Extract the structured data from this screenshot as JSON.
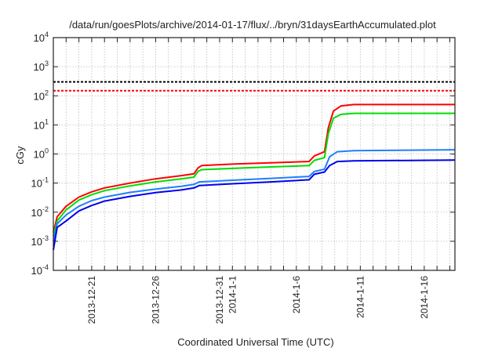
{
  "chart_data": {
    "type": "line",
    "title": "/data/run/goesPlots/archive/2014-01-17/flux/../bryn/31daysEarthAccumulated.plot",
    "xlabel": "Coordinated Universal Time (UTC)",
    "ylabel": "cGy",
    "x_units": "days since 2013-12-18 00:00 UTC",
    "xlim": [
      0,
      31.4
    ],
    "ylim": [
      0.0001,
      10000
    ],
    "yscale": "log",
    "grid": true,
    "y_ticks": [
      {
        "value": 0.0001,
        "base": "10",
        "exp": "-4"
      },
      {
        "value": 0.001,
        "base": "10",
        "exp": "-3"
      },
      {
        "value": 0.01,
        "base": "10",
        "exp": "-2"
      },
      {
        "value": 0.1,
        "base": "10",
        "exp": "-1"
      },
      {
        "value": 1,
        "base": "10",
        "exp": "0"
      },
      {
        "value": 10,
        "base": "10",
        "exp": "1"
      },
      {
        "value": 100,
        "base": "10",
        "exp": "2"
      },
      {
        "value": 1000,
        "base": "10",
        "exp": "3"
      },
      {
        "value": 10000,
        "base": "10",
        "exp": "4"
      }
    ],
    "x_tick_labels": [
      {
        "x": 3,
        "label": "2013-12-21"
      },
      {
        "x": 8,
        "label": "2013-12-26"
      },
      {
        "x": 13,
        "label": "2013-12-31"
      },
      {
        "x": 14,
        "label": "2014-1-1"
      },
      {
        "x": 19,
        "label": "2014-1-6"
      },
      {
        "x": 24,
        "label": "2014-1-11"
      },
      {
        "x": 29,
        "label": "2014-1-16"
      }
    ],
    "thresholds": [
      {
        "name": "threshold-black",
        "value": 300,
        "color": "#000000"
      },
      {
        "name": "threshold-red",
        "value": 150,
        "color": "#ff0000"
      }
    ],
    "series": [
      {
        "name": "red",
        "color": "#ff0000",
        "x": [
          0,
          0.3,
          1,
          2,
          3,
          4,
          6,
          8,
          10,
          11.0,
          11.3,
          11.6,
          14,
          17,
          20.0,
          20.4,
          21.2,
          21.5,
          21.9,
          22.5,
          23.5,
          31.4
        ],
        "y": [
          0.002,
          0.007,
          0.016,
          0.033,
          0.05,
          0.068,
          0.1,
          0.14,
          0.18,
          0.21,
          0.33,
          0.4,
          0.45,
          0.5,
          0.55,
          0.85,
          1.2,
          8,
          30,
          45,
          50,
          50
        ]
      },
      {
        "name": "green",
        "color": "#00dd00",
        "x": [
          0,
          0.3,
          1,
          2,
          3,
          4,
          6,
          8,
          10,
          11.0,
          11.3,
          11.6,
          14,
          17,
          20.0,
          20.4,
          21.2,
          21.5,
          21.9,
          22.5,
          23.5,
          31.4
        ],
        "y": [
          0.0015,
          0.005,
          0.012,
          0.026,
          0.04,
          0.055,
          0.08,
          0.11,
          0.14,
          0.16,
          0.25,
          0.29,
          0.32,
          0.36,
          0.4,
          0.6,
          0.75,
          5,
          17,
          23,
          25,
          25
        ]
      },
      {
        "name": "light-blue",
        "color": "#1e7fff",
        "x": [
          0,
          0.3,
          1,
          2,
          3,
          4,
          6,
          8,
          10,
          11.0,
          11.4,
          14,
          17,
          20.0,
          20.4,
          21.2,
          21.6,
          22.2,
          23.5,
          31.4
        ],
        "y": [
          0.001,
          0.004,
          0.008,
          0.016,
          0.025,
          0.033,
          0.048,
          0.062,
          0.077,
          0.09,
          0.11,
          0.125,
          0.145,
          0.17,
          0.25,
          0.3,
          0.8,
          1.2,
          1.3,
          1.4
        ]
      },
      {
        "name": "dark-blue",
        "color": "#0000ee",
        "x": [
          0,
          0.3,
          1,
          2,
          3,
          4,
          6,
          8,
          10,
          11.0,
          11.4,
          14,
          17,
          20.0,
          20.4,
          21.2,
          21.6,
          22.2,
          23.5,
          31.4
        ],
        "y": [
          0.0005,
          0.003,
          0.005,
          0.011,
          0.017,
          0.024,
          0.035,
          0.047,
          0.058,
          0.068,
          0.082,
          0.095,
          0.11,
          0.13,
          0.2,
          0.24,
          0.4,
          0.55,
          0.58,
          0.62
        ]
      }
    ]
  }
}
